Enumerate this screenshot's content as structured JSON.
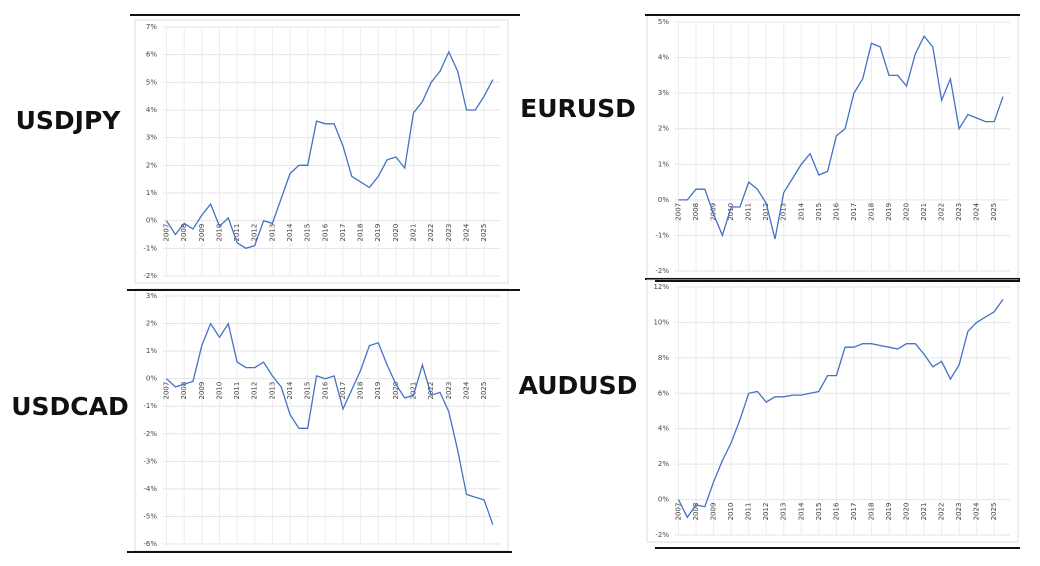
{
  "chart_data": [
    {
      "type": "line",
      "title": "USDJPY",
      "color": "#4472c4",
      "grid": true,
      "x": [
        2007,
        2007.5,
        2008,
        2008.5,
        2009,
        2009.5,
        2010,
        2010.5,
        2011,
        2011.5,
        2012,
        2012.5,
        2013,
        2013.5,
        2014,
        2014.5,
        2015,
        2015.5,
        2016,
        2016.5,
        2017,
        2017.5,
        2018,
        2018.5,
        2019,
        2019.5,
        2020,
        2020.5,
        2021,
        2021.5,
        2022,
        2022.5,
        2023,
        2023.5,
        2024,
        2024.5,
        2025,
        2025.5
      ],
      "values": [
        0,
        -0.5,
        -0.1,
        -0.3,
        0.2,
        0.6,
        -0.2,
        0.1,
        -0.8,
        -1.0,
        -0.9,
        0,
        -0.1,
        0.8,
        1.7,
        2.0,
        2.0,
        3.6,
        3.5,
        3.5,
        2.7,
        1.6,
        1.4,
        1.2,
        1.6,
        2.2,
        2.3,
        1.9,
        3.9,
        4.3,
        5.0,
        5.4,
        6.1,
        5.4,
        4.0,
        4.0,
        4.5,
        5.1
      ],
      "xlim": [
        2006.8,
        2025.9
      ],
      "xticks": [
        2007,
        2008,
        2009,
        2010,
        2011,
        2012,
        2013,
        2014,
        2015,
        2016,
        2017,
        2018,
        2019,
        2020,
        2021,
        2022,
        2023,
        2024,
        2025
      ],
      "ylim": [
        -2,
        7
      ],
      "yticks": [
        {
          "value": -2,
          "label": "-2%"
        },
        {
          "value": -1,
          "label": "-1%"
        },
        {
          "value": 0,
          "label": "0%"
        },
        {
          "value": 1,
          "label": "1%"
        },
        {
          "value": 2,
          "label": "2%"
        },
        {
          "value": 3,
          "label": "3%"
        },
        {
          "value": 4,
          "label": "4%"
        },
        {
          "value": 5,
          "label": "5%"
        },
        {
          "value": 6,
          "label": "6%"
        },
        {
          "value": 7,
          "label": "7%"
        }
      ]
    },
    {
      "type": "line",
      "title": "EURUSD",
      "color": "#4472c4",
      "grid": true,
      "x": [
        2007,
        2007.5,
        2008,
        2008.5,
        2009,
        2009.5,
        2010,
        2010.5,
        2011,
        2011.5,
        2012,
        2012.5,
        2013,
        2013.5,
        2014,
        2014.5,
        2015,
        2015.5,
        2016,
        2016.5,
        2017,
        2017.5,
        2018,
        2018.5,
        2019,
        2019.5,
        2020,
        2020.5,
        2021,
        2021.5,
        2022,
        2022.5,
        2023,
        2023.5,
        2024,
        2024.5,
        2025,
        2025.5
      ],
      "values": [
        0,
        0,
        0.3,
        0.3,
        -0.4,
        -1.0,
        -0.2,
        -0.2,
        0.5,
        0.3,
        -0.1,
        -1.1,
        0.2,
        0.6,
        1.0,
        1.3,
        0.7,
        0.8,
        1.8,
        2.0,
        3.0,
        3.4,
        4.4,
        4.3,
        3.5,
        3.5,
        3.2,
        4.1,
        4.6,
        4.3,
        2.8,
        3.4,
        2.0,
        2.4,
        2.3,
        2.2,
        2.2,
        2.9
      ],
      "xlim": [
        2006.8,
        2025.9
      ],
      "xticks": [
        2007,
        2008,
        2009,
        2010,
        2011,
        2012,
        2013,
        2014,
        2015,
        2016,
        2017,
        2018,
        2019,
        2020,
        2021,
        2022,
        2023,
        2024,
        2025
      ],
      "ylim": [
        -2,
        5
      ],
      "yticks": [
        {
          "value": -2,
          "label": "-2%"
        },
        {
          "value": -1,
          "label": "-1%"
        },
        {
          "value": 0,
          "label": "0%"
        },
        {
          "value": 1,
          "label": "1%"
        },
        {
          "value": 2,
          "label": "2%"
        },
        {
          "value": 3,
          "label": "3%"
        },
        {
          "value": 4,
          "label": "4%"
        },
        {
          "value": 5,
          "label": "5%"
        }
      ]
    },
    {
      "type": "line",
      "title": "USDCAD",
      "color": "#4472c4",
      "grid": true,
      "x": [
        2007,
        2007.5,
        2008,
        2008.5,
        2009,
        2009.5,
        2010,
        2010.5,
        2011,
        2011.5,
        2012,
        2012.5,
        2013,
        2013.5,
        2014,
        2014.5,
        2015,
        2015.5,
        2016,
        2016.5,
        2017,
        2017.5,
        2018,
        2018.5,
        2019,
        2019.5,
        2020,
        2020.5,
        2021,
        2021.5,
        2022,
        2022.5,
        2023,
        2023.5,
        2024,
        2024.5,
        2025,
        2025.5
      ],
      "values": [
        0,
        -0.3,
        -0.2,
        -0.1,
        1.2,
        2.0,
        1.5,
        2.0,
        0.6,
        0.4,
        0.4,
        0.6,
        0.1,
        -0.3,
        -1.3,
        -1.8,
        -1.8,
        0.1,
        0.0,
        0.1,
        -1.1,
        -0.4,
        0.3,
        1.2,
        1.3,
        0.5,
        -0.2,
        -0.7,
        -0.6,
        0.5,
        -0.6,
        -0.5,
        -1.2,
        -2.6,
        -4.2,
        -4.3,
        -4.4,
        -5.3
      ],
      "xlim": [
        2006.8,
        2025.9
      ],
      "xticks": [
        2007,
        2008,
        2009,
        2010,
        2011,
        2012,
        2013,
        2014,
        2015,
        2016,
        2017,
        2018,
        2019,
        2020,
        2021,
        2022,
        2023,
        2024,
        2025
      ],
      "ylim": [
        -6,
        3
      ],
      "yticks": [
        {
          "value": -6,
          "label": "-6%"
        },
        {
          "value": -5,
          "label": "-5%"
        },
        {
          "value": -4,
          "label": "-4%"
        },
        {
          "value": -3,
          "label": "-3%"
        },
        {
          "value": -2,
          "label": "-2%"
        },
        {
          "value": -1,
          "label": "-1%"
        },
        {
          "value": 0,
          "label": "0%"
        },
        {
          "value": 1,
          "label": "1%"
        },
        {
          "value": 2,
          "label": "2%"
        },
        {
          "value": 3,
          "label": "3%"
        }
      ]
    },
    {
      "type": "line",
      "title": "AUDUSD",
      "color": "#4472c4",
      "grid": true,
      "x": [
        2007,
        2007.5,
        2008,
        2008.5,
        2009,
        2009.5,
        2010,
        2010.5,
        2011,
        2011.5,
        2012,
        2012.5,
        2013,
        2013.5,
        2014,
        2014.5,
        2015,
        2015.5,
        2016,
        2016.5,
        2017,
        2017.5,
        2018,
        2018.5,
        2019,
        2019.5,
        2020,
        2020.5,
        2021,
        2021.5,
        2022,
        2022.5,
        2023,
        2023.5,
        2024,
        2024.5,
        2025,
        2025.5
      ],
      "values": [
        0,
        -1.0,
        -0.3,
        -0.4,
        1.0,
        2.2,
        3.2,
        4.5,
        6.0,
        6.1,
        5.5,
        5.8,
        5.8,
        5.9,
        5.9,
        6.0,
        6.1,
        7.0,
        7.0,
        8.6,
        8.6,
        8.8,
        8.8,
        8.7,
        8.6,
        8.5,
        8.8,
        8.8,
        8.2,
        7.5,
        7.8,
        6.8,
        7.6,
        9.5,
        10.0,
        10.3,
        10.6,
        11.3
      ],
      "xlim": [
        2006.8,
        2025.9
      ],
      "xticks": [
        2007,
        2008,
        2009,
        2010,
        2011,
        2012,
        2013,
        2014,
        2015,
        2016,
        2017,
        2018,
        2019,
        2020,
        2021,
        2022,
        2023,
        2024,
        2025
      ],
      "ylim": [
        -2,
        12
      ],
      "yticks": [
        {
          "value": -2,
          "label": "-2%"
        },
        {
          "value": 0,
          "label": "0%"
        },
        {
          "value": 2,
          "label": "2%"
        },
        {
          "value": 4,
          "label": "4%"
        },
        {
          "value": 6,
          "label": "6%"
        },
        {
          "value": 8,
          "label": "8%"
        },
        {
          "value": 10,
          "label": "10%"
        },
        {
          "value": 12,
          "label": "12%"
        }
      ]
    }
  ]
}
